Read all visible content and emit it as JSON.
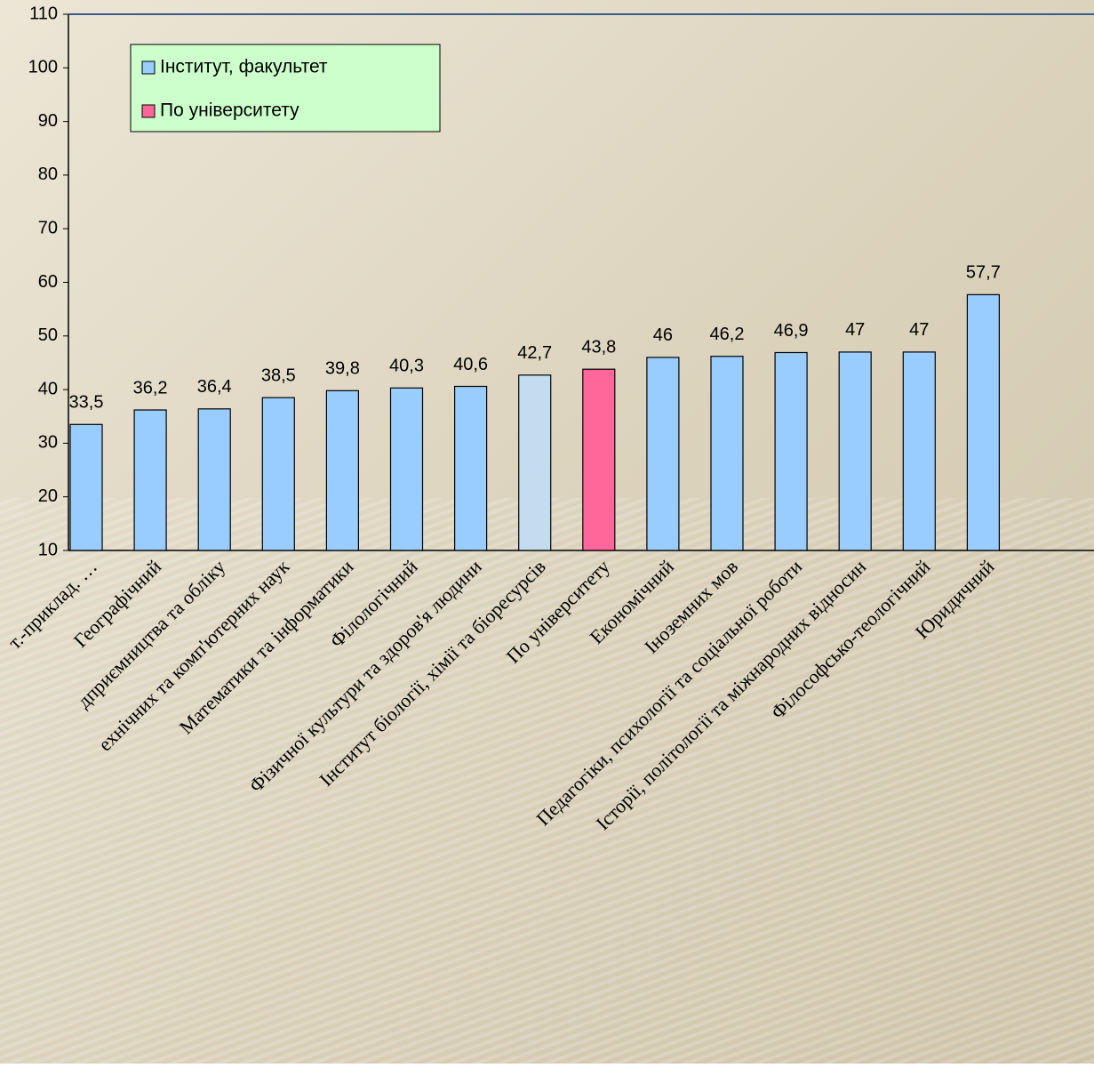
{
  "chart_data": {
    "type": "bar",
    "categories": [
      "т.-приклад. …",
      "Географічний",
      "дприємництва та обліку",
      "ехнічних та комп'ютерних наук",
      "Математики та інформатики",
      "Філологічний",
      "Фізичної культури та здоров'я людини",
      "Інститут біології, хімії та біоресурсів",
      "По університету",
      "Економічний",
      "Іноземних мов",
      "Педагогіки, психології та соціальної роботи",
      "Історії, політології та міжнародних відносин",
      "Філософсько-теологічний",
      "Юридичний"
    ],
    "values": [
      33.5,
      36.2,
      36.4,
      38.5,
      39.8,
      40.3,
      40.6,
      42.7,
      43.8,
      46,
      46.2,
      46.9,
      47,
      47,
      57.7
    ],
    "value_labels": [
      "33,5",
      "36,2",
      "36,4",
      "38,5",
      "39,8",
      "40,3",
      "40,6",
      "42,7",
      "43,8",
      "46",
      "46,2",
      "46,9",
      "47",
      "47",
      "57,7"
    ],
    "colors": [
      "#99ccff",
      "#99ccff",
      "#99ccff",
      "#99ccff",
      "#99ccff",
      "#99ccff",
      "#99ccff",
      "#c4dcf0",
      "#ff6699",
      "#99ccff",
      "#99ccff",
      "#99ccff",
      "#99ccff",
      "#99ccff",
      "#99ccff"
    ],
    "legend": [
      {
        "name": "Інститут,  факультет",
        "color": "#99ccff"
      },
      {
        "name": "По університету",
        "color": "#ff6699"
      }
    ],
    "ylim": [
      10,
      110
    ],
    "yticks": [
      10,
      20,
      30,
      40,
      50,
      60,
      70,
      80,
      90,
      100,
      110
    ]
  }
}
